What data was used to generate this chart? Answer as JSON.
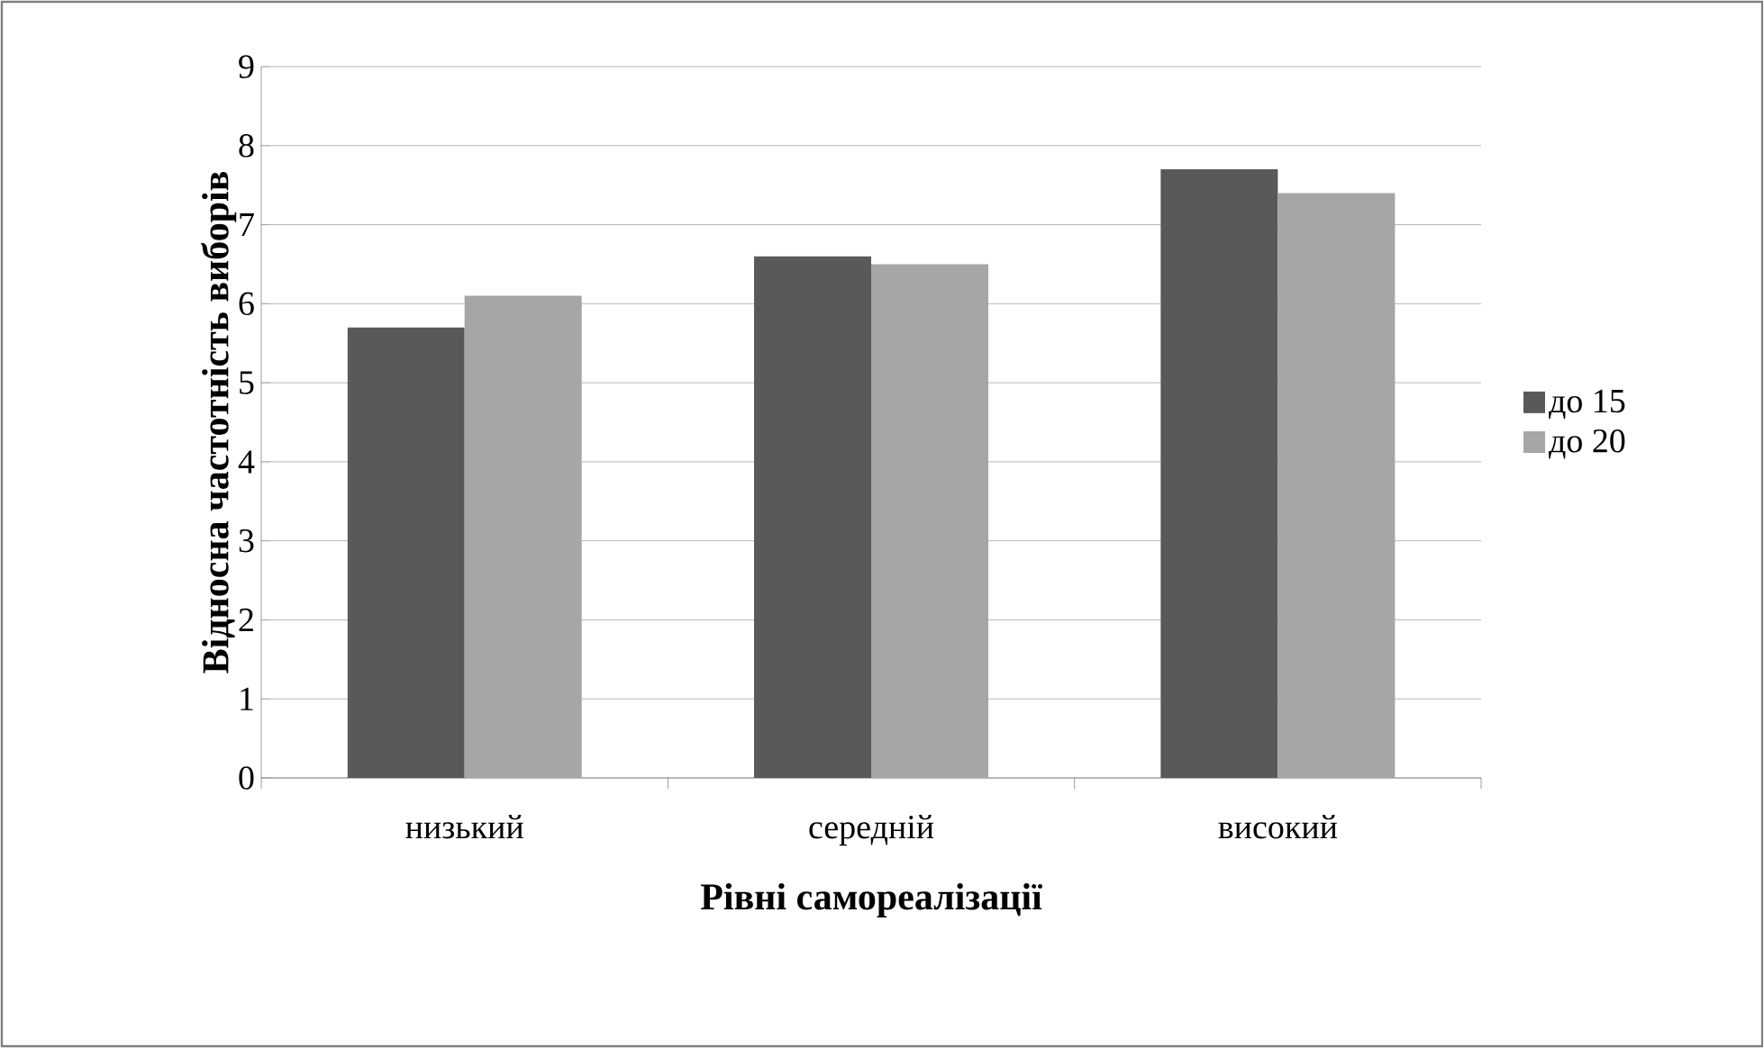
{
  "chart_data": {
    "type": "bar",
    "xlabel": "Рівні самореалізації",
    "ylabel": "Відносна частотність виборів",
    "categories": [
      "низький",
      "середній",
      "високий"
    ],
    "series": [
      {
        "name": "до 15",
        "color": "#595959",
        "values": [
          5.7,
          6.6,
          7.7
        ]
      },
      {
        "name": "до 20",
        "color": "#a6a6a6",
        "values": [
          6.1,
          6.5,
          7.4
        ]
      }
    ],
    "ylim": [
      0,
      9
    ],
    "yticks": [
      0,
      1,
      2,
      3,
      4,
      5,
      6,
      7,
      8,
      9
    ],
    "grid": "y",
    "legend": "right"
  }
}
